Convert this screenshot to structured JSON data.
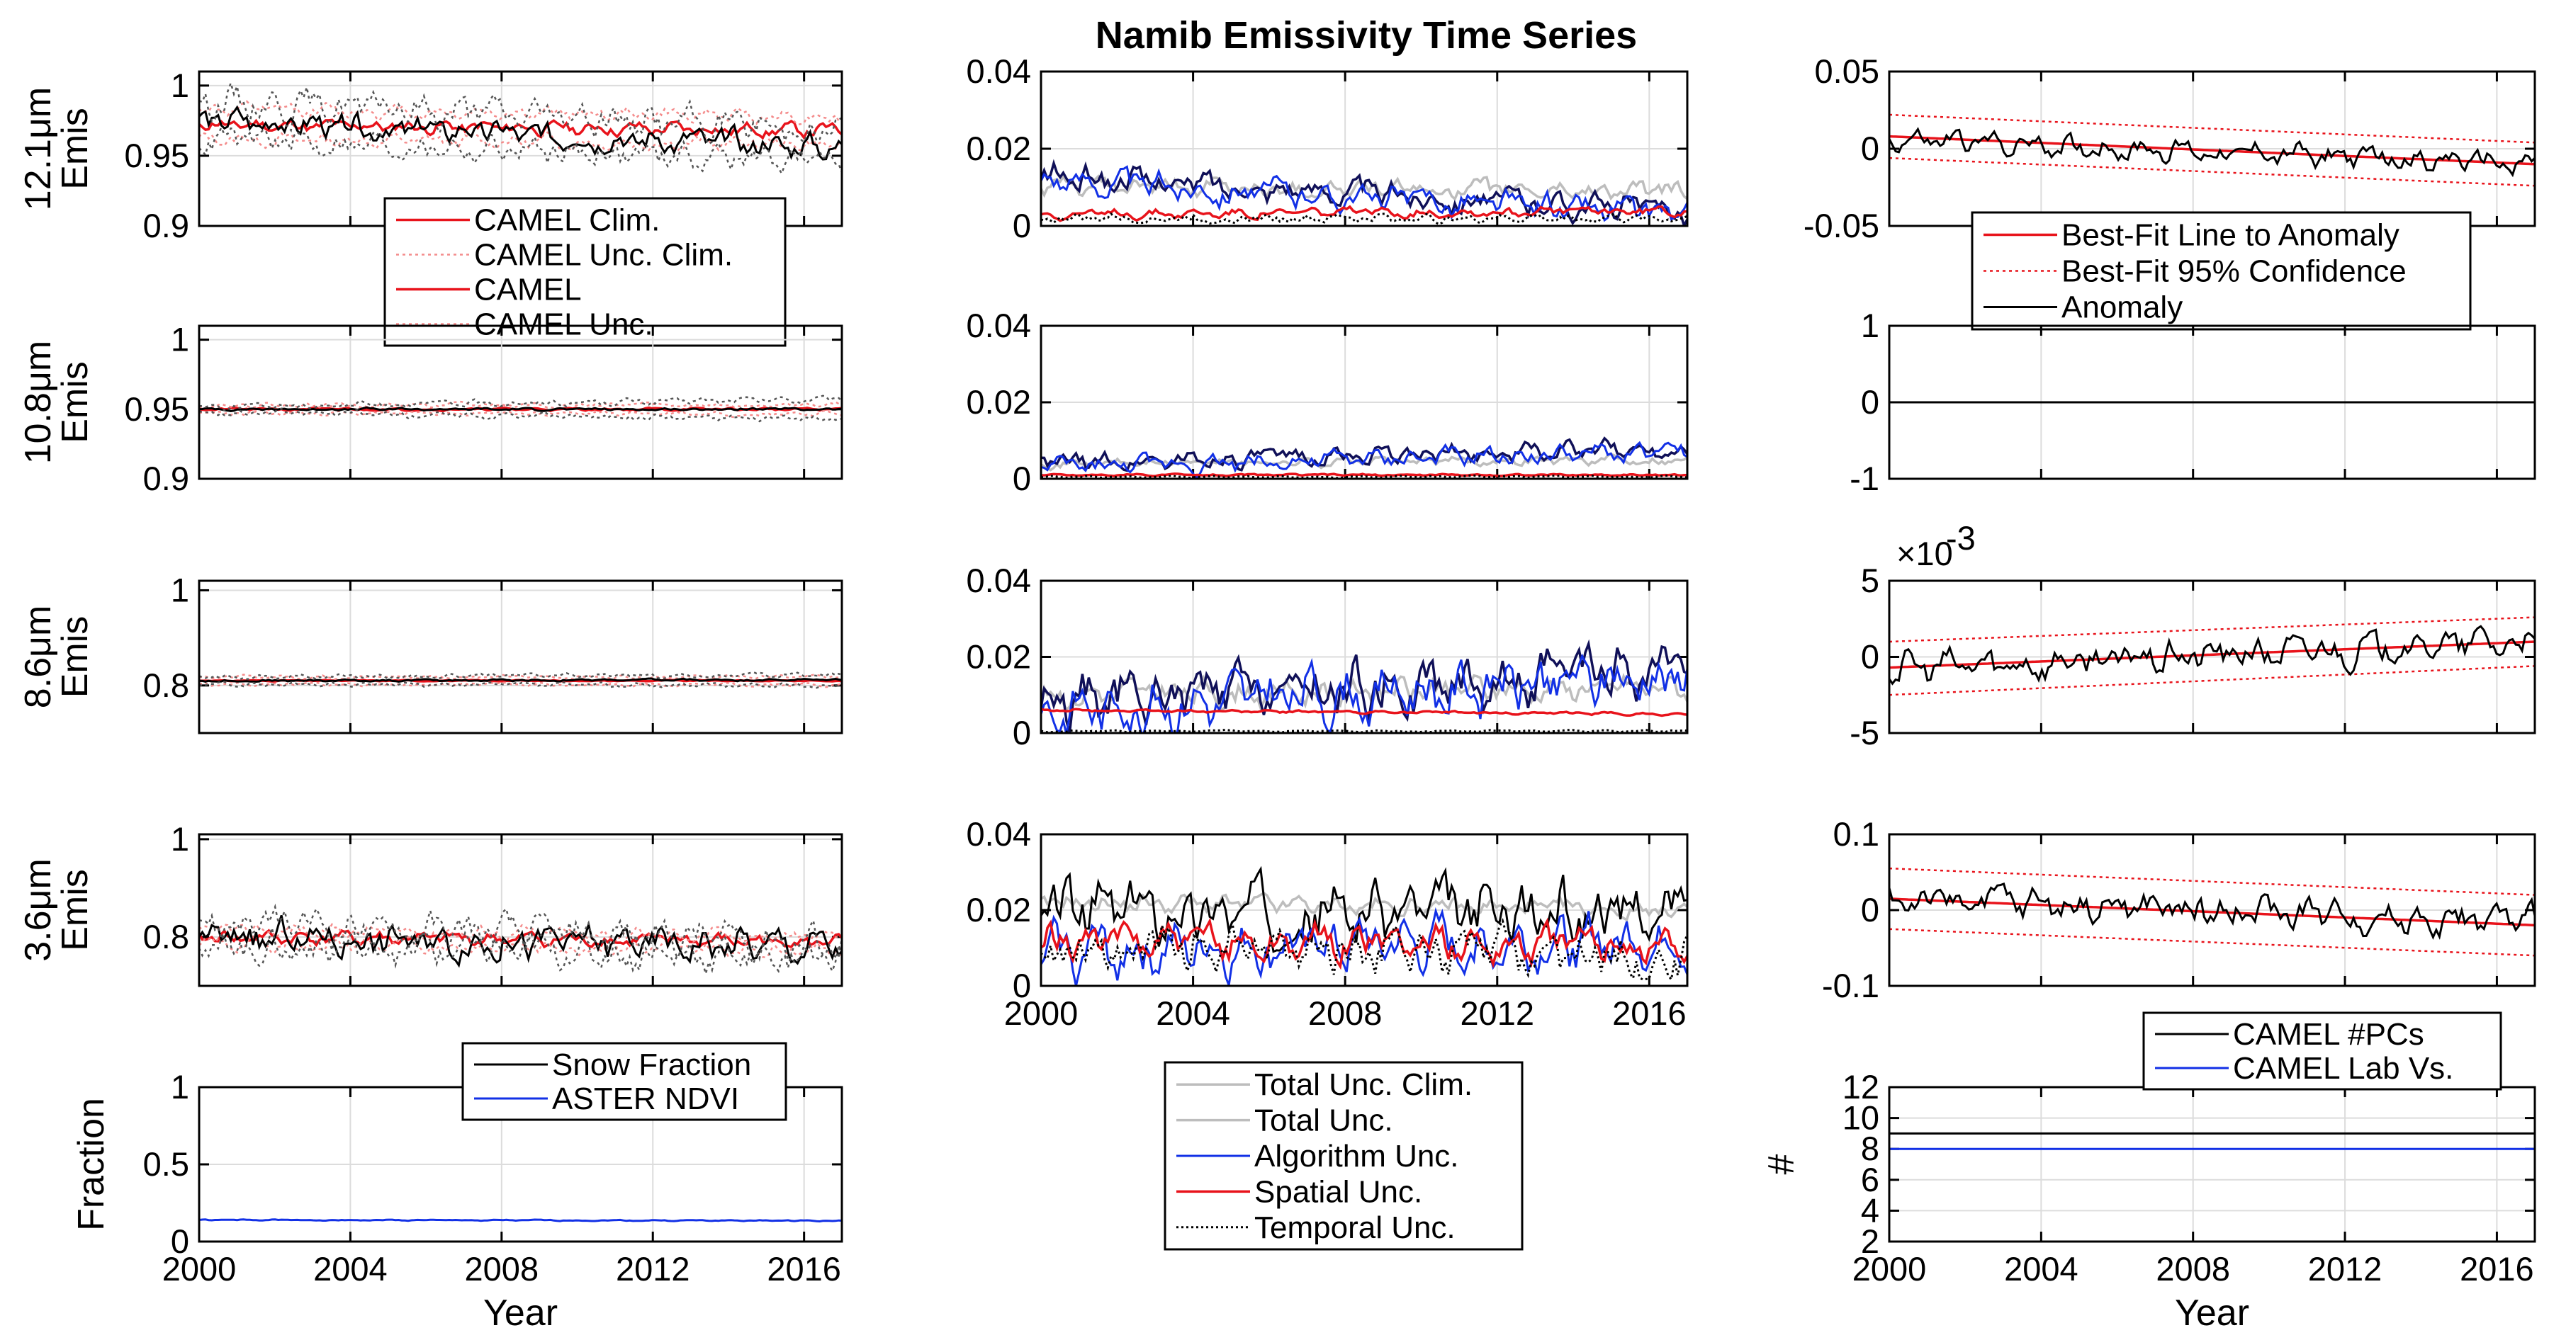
{
  "title": "Namib Emissivity Time Series",
  "colors": {
    "red": "#e8131b",
    "light_red": "#f48b8b",
    "black": "#000000",
    "gray_dot": "#555555",
    "light_gray": "#bdbdbd",
    "blue": "#1230e6",
    "navy": "#101058"
  },
  "chart_data": [
    {
      "id": "emis_12_1",
      "type": "line",
      "ylabel_line1": "12.1μm",
      "ylabel_line2": "Emis",
      "xlim": [
        2000,
        2017
      ],
      "ylim": [
        0.9,
        1.01
      ],
      "yticks": [
        "1",
        "0.95",
        "0.9"
      ],
      "ytick_values": [
        1,
        0.95,
        0.9
      ],
      "series": [
        {
          "name": "CAMEL Clim.",
          "style": "red",
          "start": 0.972,
          "end": 0.968,
          "noise": 0.004,
          "seed": 11
        },
        {
          "name": "CAMEL Unc. Clim. (upper)",
          "style": "light_red_dot",
          "start": 0.983,
          "end": 0.978,
          "noise": 0.004,
          "seed": 12
        },
        {
          "name": "CAMEL Unc. Clim. (lower)",
          "style": "light_red_dot",
          "start": 0.962,
          "end": 0.958,
          "noise": 0.004,
          "seed": 13
        },
        {
          "name": "CAMEL",
          "style": "black",
          "start": 0.975,
          "end": 0.955,
          "noise": 0.008,
          "seed": 14
        },
        {
          "name": "CAMEL Unc. (upper)",
          "style": "gray_dot",
          "start": 0.99,
          "end": 0.968,
          "noise": 0.01,
          "seed": 15
        },
        {
          "name": "CAMEL Unc. (lower)",
          "style": "gray_dot",
          "start": 0.962,
          "end": 0.946,
          "noise": 0.008,
          "seed": 16
        }
      ],
      "legend": [
        "CAMEL Clim.",
        "CAMEL Unc. Clim.",
        "CAMEL",
        "CAMEL Unc."
      ]
    },
    {
      "id": "emis_10_8",
      "type": "line",
      "ylabel_line1": "10.8μm",
      "ylabel_line2": "Emis",
      "xlim": [
        2000,
        2017
      ],
      "ylim": [
        0.9,
        1.01
      ],
      "yticks": [
        "1",
        "0.95",
        "0.9"
      ],
      "ytick_values": [
        1,
        0.95,
        0.9
      ],
      "series": [
        {
          "name": "CAMEL Clim.",
          "style": "red",
          "start": 0.95,
          "end": 0.95,
          "noise": 0.0008,
          "seed": 21
        },
        {
          "name": "CAMEL Unc. Clim. (upper)",
          "style": "light_red_dot",
          "start": 0.953,
          "end": 0.953,
          "noise": 0.0015,
          "seed": 22
        },
        {
          "name": "CAMEL Unc. Clim. (lower)",
          "style": "light_red_dot",
          "start": 0.947,
          "end": 0.947,
          "noise": 0.0015,
          "seed": 23
        },
        {
          "name": "CAMEL",
          "style": "black",
          "start": 0.95,
          "end": 0.95,
          "noise": 0.0008,
          "seed": 24
        },
        {
          "name": "CAMEL Unc. (upper)",
          "style": "gray_dot",
          "start": 0.952,
          "end": 0.957,
          "noise": 0.002,
          "seed": 25
        },
        {
          "name": "CAMEL Unc. (lower)",
          "style": "gray_dot",
          "start": 0.948,
          "end": 0.943,
          "noise": 0.002,
          "seed": 26
        }
      ]
    },
    {
      "id": "emis_8_6",
      "type": "line",
      "ylabel_line1": "8.6μm",
      "ylabel_line2": "Emis",
      "xlim": [
        2000,
        2017
      ],
      "ylim": [
        0.7,
        1.02
      ],
      "yticks": [
        "1",
        "0.8"
      ],
      "ytick_values": [
        1,
        0.8
      ],
      "series": [
        {
          "name": "CAMEL Clim.",
          "style": "red",
          "start": 0.81,
          "end": 0.81,
          "noise": 0.001,
          "seed": 31
        },
        {
          "name": "CAMEL Unc. Clim. (upper)",
          "style": "light_red_dot",
          "start": 0.818,
          "end": 0.818,
          "noise": 0.003,
          "seed": 32
        },
        {
          "name": "CAMEL Unc. Clim. (lower)",
          "style": "light_red_dot",
          "start": 0.802,
          "end": 0.802,
          "noise": 0.003,
          "seed": 33
        },
        {
          "name": "CAMEL",
          "style": "black",
          "start": 0.81,
          "end": 0.812,
          "noise": 0.002,
          "seed": 34
        },
        {
          "name": "CAMEL Unc. (upper)",
          "style": "gray_dot",
          "start": 0.818,
          "end": 0.822,
          "noise": 0.004,
          "seed": 35
        },
        {
          "name": "CAMEL Unc. (lower)",
          "style": "gray_dot",
          "start": 0.802,
          "end": 0.8,
          "noise": 0.004,
          "seed": 36
        }
      ]
    },
    {
      "id": "emis_3_6",
      "type": "line",
      "ylabel_line1": "3.6μm",
      "ylabel_line2": "Emis",
      "xlim": [
        2000,
        2017
      ],
      "ylim": [
        0.7,
        1.01
      ],
      "yticks": [
        "1",
        "0.8"
      ],
      "ytick_values": [
        1,
        0.8
      ],
      "series": [
        {
          "name": "CAMEL Clim.",
          "style": "red",
          "start": 0.8,
          "end": 0.79,
          "noise": 0.012,
          "seed": 41
        },
        {
          "name": "CAMEL Unc. Clim. (upper)",
          "style": "light_red_dot",
          "start": 0.815,
          "end": 0.8,
          "noise": 0.012,
          "seed": 42
        },
        {
          "name": "CAMEL Unc. Clim. (lower)",
          "style": "light_red_dot",
          "start": 0.785,
          "end": 0.775,
          "noise": 0.012,
          "seed": 43
        },
        {
          "name": "CAMEL",
          "style": "black",
          "start": 0.8,
          "end": 0.78,
          "noise": 0.03,
          "seed": 44
        },
        {
          "name": "CAMEL Unc. (upper)",
          "style": "gray_dot",
          "start": 0.83,
          "end": 0.79,
          "noise": 0.03,
          "seed": 45
        },
        {
          "name": "CAMEL Unc. (lower)",
          "style": "gray_dot",
          "start": 0.78,
          "end": 0.76,
          "noise": 0.03,
          "seed": 46
        }
      ]
    },
    {
      "id": "fraction",
      "type": "line",
      "ylabel_line1": "Fraction",
      "ylabel_line2": "",
      "xlim": [
        2000,
        2017
      ],
      "ylim": [
        0,
        1
      ],
      "yticks": [
        "1",
        "0.5",
        "0"
      ],
      "ytick_values": [
        1,
        0.5,
        0
      ],
      "xticks": [
        "2000",
        "2004",
        "2008",
        "2012",
        "2016"
      ],
      "xtick_values": [
        2000,
        2004,
        2008,
        2012,
        2016
      ],
      "xlabel": "Year",
      "series": [
        {
          "name": "Snow Fraction",
          "style": "black",
          "start": 0,
          "end": 0,
          "noise": 0,
          "seed": 51
        },
        {
          "name": "ASTER NDVI",
          "style": "blue",
          "start": 0.14,
          "end": 0.135,
          "noise": 0.003,
          "seed": 52
        }
      ],
      "legend": [
        "Snow Fraction",
        "ASTER NDVI"
      ]
    },
    {
      "id": "unc_12_1",
      "type": "line",
      "xlim": [
        2000,
        2017
      ],
      "ylim": [
        0,
        0.04
      ],
      "yticks": [
        "0.04",
        "0.02",
        "0"
      ],
      "ytick_values": [
        0.04,
        0.02,
        0
      ],
      "series": [
        {
          "name": "Total Unc. Clim.",
          "style": "light_gray",
          "start": 0.01,
          "end": 0.009,
          "noise": 0.002,
          "seed": 61
        },
        {
          "name": "Total Unc.",
          "style": "navy",
          "start": 0.013,
          "end": 0.004,
          "noise": 0.003,
          "seed": 62
        },
        {
          "name": "Algorithm Unc.",
          "style": "blue",
          "start": 0.012,
          "end": 0.003,
          "noise": 0.003,
          "seed": 63
        },
        {
          "name": "Spatial Unc.",
          "style": "red",
          "start": 0.003,
          "end": 0.004,
          "noise": 0.001,
          "seed": 64
        },
        {
          "name": "Temporal Unc.",
          "style": "black_dot",
          "start": 0.002,
          "end": 0.002,
          "noise": 0.001,
          "seed": 65
        }
      ]
    },
    {
      "id": "unc_10_8",
      "type": "line",
      "xlim": [
        2000,
        2017
      ],
      "ylim": [
        0,
        0.04
      ],
      "yticks": [
        "0.04",
        "0.02",
        "0"
      ],
      "ytick_values": [
        0.04,
        0.02,
        0
      ],
      "series": [
        {
          "name": "Total Unc. Clim.",
          "style": "light_gray",
          "start": 0.004,
          "end": 0.005,
          "noise": 0.001,
          "seed": 71
        },
        {
          "name": "Total Unc.",
          "style": "navy",
          "start": 0.004,
          "end": 0.008,
          "noise": 0.002,
          "seed": 72
        },
        {
          "name": "Algorithm Unc.",
          "style": "blue",
          "start": 0.003,
          "end": 0.007,
          "noise": 0.002,
          "seed": 73
        },
        {
          "name": "Spatial Unc.",
          "style": "red",
          "start": 0.001,
          "end": 0.001,
          "noise": 0.0002,
          "seed": 74
        },
        {
          "name": "Temporal Unc.",
          "style": "black_dot",
          "start": 0.0005,
          "end": 0.0005,
          "noise": 0.0002,
          "seed": 75
        }
      ]
    },
    {
      "id": "unc_8_6",
      "type": "line",
      "xlim": [
        2000,
        2017
      ],
      "ylim": [
        0,
        0.04
      ],
      "yticks": [
        "0.04",
        "0.02",
        "0"
      ],
      "ytick_values": [
        0.04,
        0.02,
        0
      ],
      "series": [
        {
          "name": "Total Unc. Clim.",
          "style": "light_gray",
          "start": 0.01,
          "end": 0.012,
          "noise": 0.003,
          "seed": 81
        },
        {
          "name": "Total Unc.",
          "style": "navy",
          "start": 0.008,
          "end": 0.016,
          "noise": 0.006,
          "seed": 82
        },
        {
          "name": "Algorithm Unc.",
          "style": "blue",
          "start": 0.006,
          "end": 0.015,
          "noise": 0.006,
          "seed": 83
        },
        {
          "name": "Spatial Unc.",
          "style": "red",
          "start": 0.006,
          "end": 0.005,
          "noise": 0.0003,
          "seed": 84
        },
        {
          "name": "Temporal Unc.",
          "style": "black_dot",
          "start": 0.0005,
          "end": 0.0005,
          "noise": 0.0002,
          "seed": 85
        }
      ]
    },
    {
      "id": "unc_3_6",
      "type": "line",
      "xlim": [
        2000,
        2017
      ],
      "ylim": [
        0,
        0.04
      ],
      "yticks": [
        "0.04",
        "0.02",
        "0"
      ],
      "ytick_values": [
        0.04,
        0.02,
        0
      ],
      "xticks": [
        "2000",
        "2004",
        "2008",
        "2012",
        "2016"
      ],
      "xtick_values": [
        2000,
        2004,
        2008,
        2012,
        2016
      ],
      "series": [
        {
          "name": "Total Unc. Clim.",
          "style": "light_gray",
          "start": 0.022,
          "end": 0.02,
          "noise": 0.002,
          "seed": 91
        },
        {
          "name": "Total Unc.",
          "style": "black",
          "start": 0.02,
          "end": 0.019,
          "noise": 0.007,
          "seed": 92
        },
        {
          "name": "Algorithm Unc.",
          "style": "blue",
          "start": 0.009,
          "end": 0.012,
          "noise": 0.006,
          "seed": 93
        },
        {
          "name": "Spatial Unc.",
          "style": "red",
          "start": 0.012,
          "end": 0.011,
          "noise": 0.004,
          "seed": 94
        },
        {
          "name": "Temporal Unc.",
          "style": "black_dot",
          "start": 0.01,
          "end": 0.008,
          "noise": 0.005,
          "seed": 95
        }
      ],
      "legend": [
        "Total Unc. Clim.",
        "Total Unc.",
        "Algorithm Unc.",
        "Spatial Unc.",
        "Temporal Unc."
      ]
    },
    {
      "id": "anom_12_1",
      "type": "line",
      "xlim": [
        2000,
        2017
      ],
      "ylim": [
        -0.05,
        0.05
      ],
      "yticks": [
        "0.05",
        "0",
        "-0.05"
      ],
      "ytick_values": [
        0.05,
        0,
        -0.05
      ],
      "series": [
        {
          "name": "Best-Fit Line to Anomaly",
          "style": "red",
          "start": 0.008,
          "end": -0.01,
          "noise": 0,
          "seed": 101
        },
        {
          "name": "Best-Fit 95% Confidence (upper)",
          "style": "red_dot",
          "start": 0.022,
          "end": 0.004,
          "noise": 0,
          "seed": 102
        },
        {
          "name": "Best-Fit 95% Confidence (lower)",
          "style": "red_dot",
          "start": -0.006,
          "end": -0.024,
          "noise": 0,
          "seed": 103
        },
        {
          "name": "Anomaly",
          "style": "black",
          "start": 0.006,
          "end": -0.01,
          "noise": 0.006,
          "seed": 104
        }
      ],
      "legend": [
        "Best-Fit Line to Anomaly",
        "Best-Fit 95% Confidence",
        "Anomaly"
      ]
    },
    {
      "id": "anom_10_8",
      "type": "line",
      "xlim": [
        2000,
        2017
      ],
      "ylim": [
        -1,
        1
      ],
      "yticks": [
        "1",
        "0",
        "-1"
      ],
      "ytick_values": [
        1,
        0,
        -1
      ],
      "series": [
        {
          "name": "Anomaly",
          "style": "black",
          "start": 0,
          "end": 0,
          "noise": 0,
          "seed": 111
        }
      ]
    },
    {
      "id": "anom_8_6",
      "type": "line",
      "xlim": [
        2000,
        2017
      ],
      "ylim": [
        -5,
        5
      ],
      "yticks": [
        "5",
        "0",
        "-5"
      ],
      "ytick_values": [
        5,
        0,
        -5
      ],
      "exponent_label": "×10",
      "exponent_power": "-3",
      "series": [
        {
          "name": "Best-Fit Line to Anomaly",
          "style": "red",
          "start": -0.7,
          "end": 1.0,
          "noise": 0,
          "seed": 121
        },
        {
          "name": "Best-Fit 95% Confidence (upper)",
          "style": "red_dot",
          "start": 1.0,
          "end": 2.6,
          "noise": 0,
          "seed": 122
        },
        {
          "name": "Best-Fit 95% Confidence (lower)",
          "style": "red_dot",
          "start": -2.5,
          "end": -0.6,
          "noise": 0,
          "seed": 123
        },
        {
          "name": "Anomaly",
          "style": "black",
          "start": -0.8,
          "end": 1.0,
          "noise": 0.9,
          "seed": 124
        }
      ]
    },
    {
      "id": "anom_3_6",
      "type": "line",
      "xlim": [
        2000,
        2017
      ],
      "ylim": [
        -0.1,
        0.1
      ],
      "yticks": [
        "0.1",
        "0",
        "-0.1"
      ],
      "ytick_values": [
        0.1,
        0,
        -0.1
      ],
      "series": [
        {
          "name": "Best-Fit Line to Anomaly",
          "style": "red",
          "start": 0.015,
          "end": -0.02,
          "noise": 0,
          "seed": 131
        },
        {
          "name": "Best-Fit 95% Confidence (upper)",
          "style": "red_dot",
          "start": 0.055,
          "end": 0.02,
          "noise": 0,
          "seed": 132
        },
        {
          "name": "Best-Fit 95% Confidence (lower)",
          "style": "red_dot",
          "start": -0.025,
          "end": -0.06,
          "noise": 0,
          "seed": 133
        },
        {
          "name": "Anomaly",
          "style": "black",
          "start": 0.015,
          "end": -0.015,
          "noise": 0.018,
          "seed": 134
        }
      ]
    },
    {
      "id": "pcs",
      "type": "line",
      "ylabel_line1": "#",
      "ylabel_line2": "",
      "xlim": [
        2000,
        2017
      ],
      "ylim": [
        2,
        12
      ],
      "yticks": [
        "12",
        "10",
        "8",
        "6",
        "4",
        "2"
      ],
      "ytick_values": [
        12,
        10,
        8,
        6,
        4,
        2
      ],
      "xticks": [
        "2000",
        "2004",
        "2008",
        "2012",
        "2016"
      ],
      "xtick_values": [
        2000,
        2004,
        2008,
        2012,
        2016
      ],
      "xlabel": "Year",
      "series": [
        {
          "name": "CAMEL #PCs",
          "style": "black",
          "start": 9,
          "end": 9,
          "noise": 0,
          "seed": 141
        },
        {
          "name": "CAMEL Lab Vs.",
          "style": "blue",
          "start": 8,
          "end": 8,
          "noise": 0,
          "seed": 142
        }
      ],
      "legend": [
        "CAMEL #PCs",
        "CAMEL Lab Vs."
      ]
    }
  ]
}
